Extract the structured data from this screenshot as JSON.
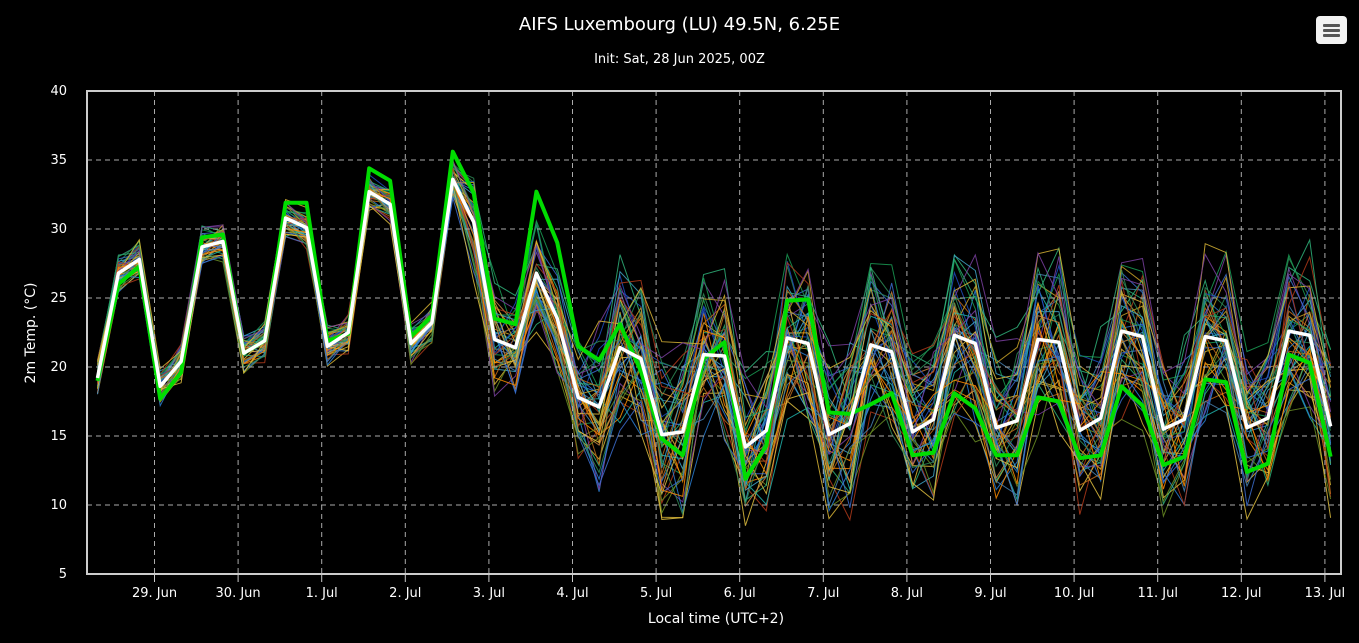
{
  "chart_data": {
    "type": "line",
    "title": "AIFS Luxembourg (LU) 49.5N, 6.25E",
    "subtitle": "Init: Sat, 28 Jun 2025, 00Z",
    "xlabel": "Local time (UTC+2)",
    "ylabel": "2m Temp. (°C)",
    "ylim": [
      5,
      40
    ],
    "yticks": [
      "5",
      "10",
      "15",
      "20",
      "25",
      "30",
      "35",
      "40"
    ],
    "xticks": [
      "29. Jun",
      "30. Jun",
      "1. Jul",
      "2. Jul",
      "3. Jul",
      "4. Jul",
      "5. Jul",
      "6. Jul",
      "7. Jul",
      "8. Jul",
      "9. Jul",
      "10. Jul",
      "11. Jul",
      "12. Jul",
      "13. Jul"
    ],
    "grid": true,
    "legend": "none",
    "x_step_hours": 6,
    "x_start": "28 Jun 2025 08:00",
    "series": [
      {
        "role": "ensemble-mean",
        "color": "#ffffff",
        "values": [
          19.2,
          26.8,
          27.8,
          18.6,
          20.4,
          28.7,
          29.1,
          21.0,
          21.9,
          30.8,
          30.1,
          21.5,
          22.5,
          32.7,
          31.8,
          21.7,
          23.2,
          33.6,
          30.5,
          22.0,
          21.4,
          26.8,
          23.5,
          17.8,
          17.1,
          21.4,
          20.6,
          15.1,
          15.3,
          20.9,
          20.8,
          14.2,
          15.4,
          22.1,
          21.7,
          15.1,
          15.9,
          21.6,
          21.1,
          15.3,
          16.2,
          22.3,
          21.7,
          15.6,
          16.1,
          22.0,
          21.8,
          15.4,
          16.3,
          22.6,
          22.2,
          15.5,
          16.2,
          22.2,
          21.9,
          15.6,
          16.3,
          22.6,
          22.3,
          15.7
        ]
      },
      {
        "role": "control",
        "color": "#00dd00",
        "values": [
          19.0,
          26.0,
          27.3,
          17.7,
          19.6,
          29.4,
          29.6,
          21.0,
          21.9,
          31.9,
          31.9,
          21.9,
          22.4,
          34.4,
          33.5,
          22.2,
          23.7,
          35.6,
          32.6,
          23.5,
          23.1,
          32.7,
          29.0,
          21.5,
          20.5,
          23.1,
          19.7,
          14.8,
          13.6,
          20.6,
          21.8,
          11.9,
          14.3,
          24.8,
          24.9,
          16.7,
          16.6,
          17.3,
          18.1,
          13.6,
          13.8,
          18.1,
          17.0,
          13.6,
          13.6,
          17.8,
          17.5,
          13.4,
          13.6,
          18.6,
          17.2,
          12.9,
          13.5,
          19.1,
          18.9,
          12.4,
          13.0,
          20.9,
          20.3,
          13.5
        ]
      }
    ]
  }
}
